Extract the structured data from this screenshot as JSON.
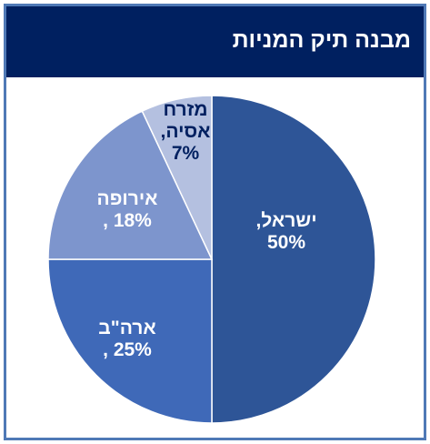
{
  "title": "מבנה תיק המניות",
  "chart_data": {
    "type": "pie",
    "title": "מבנה תיק המניות",
    "categories": [
      "ישראל",
      "ארה\"ב",
      "אירופה",
      "מזרח אסיה"
    ],
    "values": [
      50,
      25,
      18,
      7
    ],
    "unit": "%",
    "labels": [
      {
        "lines": [
          "ישראל,",
          "50%"
        ],
        "color": "#ffffff"
      },
      {
        "lines": [
          "ארה\"ב",
          "25% ,"
        ],
        "color": "#ffffff"
      },
      {
        "lines": [
          "אירופה",
          "18% ,"
        ],
        "color": "#ffffff"
      },
      {
        "lines": [
          "מזרח",
          "אסיה,",
          "7%"
        ],
        "color": "#002060"
      }
    ],
    "colors": [
      "#2e5597",
      "#3f69b8",
      "#7d95cd",
      "#b4c0e0"
    ],
    "slice_border_color": "#ffffff",
    "start_angle": "12 o'clock",
    "direction": "clockwise"
  }
}
